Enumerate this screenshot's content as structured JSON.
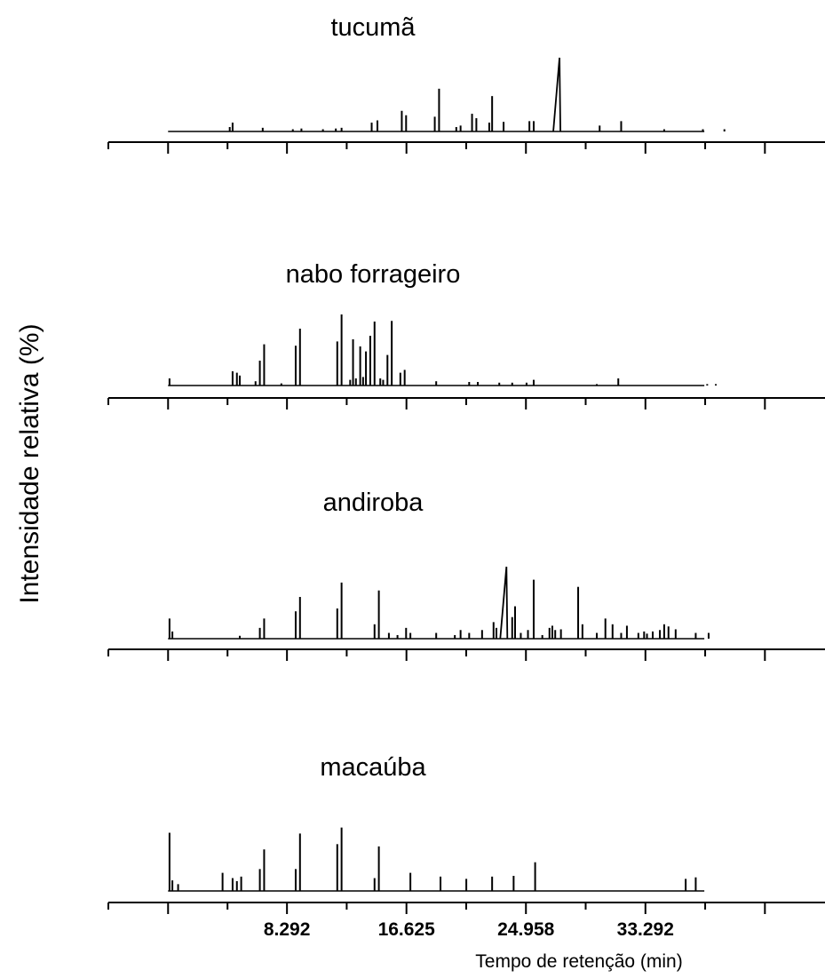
{
  "chart_data": {
    "type": "line",
    "xlabel": "Tempo de retenção (min)",
    "ylabel": "Intensidade relativa (%)",
    "xlim": [
      -4.166,
      45.816
    ],
    "ylim": [
      0,
      100
    ],
    "x_ticks_major": [
      0,
      8.292,
      16.625,
      24.958,
      33.292,
      41.625
    ],
    "x_tick_labels": [
      "",
      "8.292",
      "16.625",
      "24.958",
      "33.292",
      ""
    ],
    "x_ticks_minor": [
      4.146,
      12.458,
      20.792,
      29.125,
      37.458
    ],
    "grid": false,
    "panels": [
      {
        "name": "tucumã",
        "peaks": [
          [
            4.3,
            6
          ],
          [
            4.5,
            12
          ],
          [
            6.6,
            5
          ],
          [
            8.7,
            3
          ],
          [
            9.3,
            4
          ],
          [
            10.8,
            3
          ],
          [
            11.7,
            4
          ],
          [
            12.1,
            5
          ],
          [
            14.2,
            12
          ],
          [
            14.6,
            15
          ],
          [
            16.3,
            28
          ],
          [
            16.6,
            22
          ],
          [
            18.6,
            20
          ],
          [
            18.9,
            58
          ],
          [
            20.1,
            6
          ],
          [
            20.4,
            8
          ],
          [
            21.2,
            24
          ],
          [
            21.5,
            18
          ],
          [
            22.4,
            12
          ],
          [
            22.6,
            48
          ],
          [
            23.4,
            13
          ],
          [
            25.2,
            14
          ],
          [
            25.5,
            14
          ],
          [
            27.3,
            100
          ],
          [
            30.1,
            8
          ],
          [
            31.6,
            14
          ],
          [
            34.6,
            3
          ],
          [
            37.3,
            3
          ],
          [
            38.8,
            3
          ]
        ]
      },
      {
        "name": "nabo forrageiro",
        "peaks": [
          [
            0.1,
            10
          ],
          [
            4.5,
            20
          ],
          [
            4.8,
            18
          ],
          [
            5.0,
            14
          ],
          [
            6.1,
            6
          ],
          [
            6.4,
            35
          ],
          [
            6.7,
            58
          ],
          [
            7.9,
            3
          ],
          [
            8.9,
            56
          ],
          [
            9.2,
            80
          ],
          [
            11.8,
            62
          ],
          [
            12.1,
            100
          ],
          [
            12.7,
            8
          ],
          [
            12.9,
            65
          ],
          [
            13.1,
            10
          ],
          [
            13.4,
            55
          ],
          [
            13.6,
            12
          ],
          [
            13.8,
            48
          ],
          [
            14.1,
            70
          ],
          [
            14.4,
            90
          ],
          [
            14.8,
            10
          ],
          [
            15.0,
            8
          ],
          [
            15.3,
            43
          ],
          [
            15.6,
            91
          ],
          [
            16.2,
            18
          ],
          [
            16.5,
            22
          ],
          [
            18.7,
            6
          ],
          [
            21.0,
            5
          ],
          [
            21.6,
            5
          ],
          [
            23.1,
            4
          ],
          [
            24.0,
            4
          ],
          [
            25.0,
            4
          ],
          [
            25.5,
            8
          ],
          [
            29.9,
            2
          ],
          [
            31.4,
            10
          ],
          [
            37.6,
            2
          ],
          [
            38.2,
            2
          ]
        ]
      },
      {
        "name": "andiroba",
        "peaks": [
          [
            0.1,
            28
          ],
          [
            0.3,
            10
          ],
          [
            5.0,
            4
          ],
          [
            6.4,
            15
          ],
          [
            6.7,
            28
          ],
          [
            8.9,
            38
          ],
          [
            9.2,
            58
          ],
          [
            11.8,
            42
          ],
          [
            12.1,
            78
          ],
          [
            14.4,
            20
          ],
          [
            14.7,
            67
          ],
          [
            15.4,
            8
          ],
          [
            16.0,
            5
          ],
          [
            16.6,
            15
          ],
          [
            16.9,
            8
          ],
          [
            18.7,
            8
          ],
          [
            20.0,
            5
          ],
          [
            20.4,
            12
          ],
          [
            21.0,
            8
          ],
          [
            21.9,
            12
          ],
          [
            22.7,
            23
          ],
          [
            22.9,
            15
          ],
          [
            23.6,
            100
          ],
          [
            24.0,
            30
          ],
          [
            24.2,
            45
          ],
          [
            24.6,
            8
          ],
          [
            25.1,
            12
          ],
          [
            25.5,
            82
          ],
          [
            26.1,
            5
          ],
          [
            26.6,
            15
          ],
          [
            26.8,
            18
          ],
          [
            27.0,
            12
          ],
          [
            27.4,
            13
          ],
          [
            28.6,
            72
          ],
          [
            28.9,
            20
          ],
          [
            29.9,
            8
          ],
          [
            30.5,
            28
          ],
          [
            31.0,
            20
          ],
          [
            31.6,
            8
          ],
          [
            32.0,
            18
          ],
          [
            32.8,
            8
          ],
          [
            33.2,
            10
          ],
          [
            33.4,
            7
          ],
          [
            33.8,
            10
          ],
          [
            34.3,
            12
          ],
          [
            34.6,
            20
          ],
          [
            34.9,
            17
          ],
          [
            35.4,
            13
          ],
          [
            36.8,
            8
          ],
          [
            37.7,
            8
          ]
        ]
      },
      {
        "name": "macaúba",
        "peaks": [
          [
            0.1,
            77
          ],
          [
            0.3,
            14
          ],
          [
            0.7,
            9
          ],
          [
            3.8,
            24
          ],
          [
            4.5,
            17
          ],
          [
            4.8,
            13
          ],
          [
            5.1,
            19
          ],
          [
            6.4,
            29
          ],
          [
            6.7,
            55
          ],
          [
            8.9,
            29
          ],
          [
            9.2,
            76
          ],
          [
            11.8,
            62
          ],
          [
            12.1,
            84
          ],
          [
            14.4,
            17
          ],
          [
            14.7,
            59
          ],
          [
            16.9,
            24
          ],
          [
            19.0,
            19
          ],
          [
            20.8,
            16
          ],
          [
            22.6,
            19
          ],
          [
            24.1,
            20
          ],
          [
            25.6,
            38
          ],
          [
            36.1,
            16
          ],
          [
            36.8,
            18
          ]
        ]
      }
    ]
  }
}
